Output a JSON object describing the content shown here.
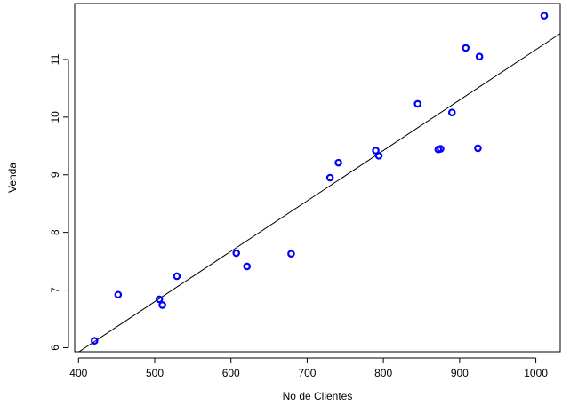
{
  "chart_data": {
    "type": "scatter",
    "title": "",
    "xlabel": "No de Clientes",
    "ylabel": "Venda",
    "xlim": [
      395,
      1032
    ],
    "ylim": [
      5.93,
      11.97
    ],
    "xticks": [
      400,
      500,
      600,
      700,
      800,
      900,
      1000
    ],
    "yticks": [
      6,
      7,
      8,
      9,
      10,
      11
    ],
    "grid": false,
    "point_color": "#0000ff",
    "line_color": "#000000",
    "points": [
      {
        "x": 421,
        "y": 6.12
      },
      {
        "x": 452,
        "y": 6.92
      },
      {
        "x": 506,
        "y": 6.84
      },
      {
        "x": 510,
        "y": 6.74
      },
      {
        "x": 529,
        "y": 7.24
      },
      {
        "x": 607,
        "y": 7.64
      },
      {
        "x": 621,
        "y": 7.41
      },
      {
        "x": 679,
        "y": 7.63
      },
      {
        "x": 730,
        "y": 8.95
      },
      {
        "x": 741,
        "y": 9.21
      },
      {
        "x": 790,
        "y": 9.42
      },
      {
        "x": 794,
        "y": 9.33
      },
      {
        "x": 845,
        "y": 10.23
      },
      {
        "x": 872,
        "y": 9.44
      },
      {
        "x": 875,
        "y": 9.45
      },
      {
        "x": 890,
        "y": 10.08
      },
      {
        "x": 908,
        "y": 11.2
      },
      {
        "x": 924,
        "y": 9.46
      },
      {
        "x": 926,
        "y": 11.05
      },
      {
        "x": 1011,
        "y": 11.76
      }
    ],
    "fit_line": {
      "x": [
        395,
        1032
      ],
      "y": [
        5.88,
        11.45
      ]
    }
  }
}
